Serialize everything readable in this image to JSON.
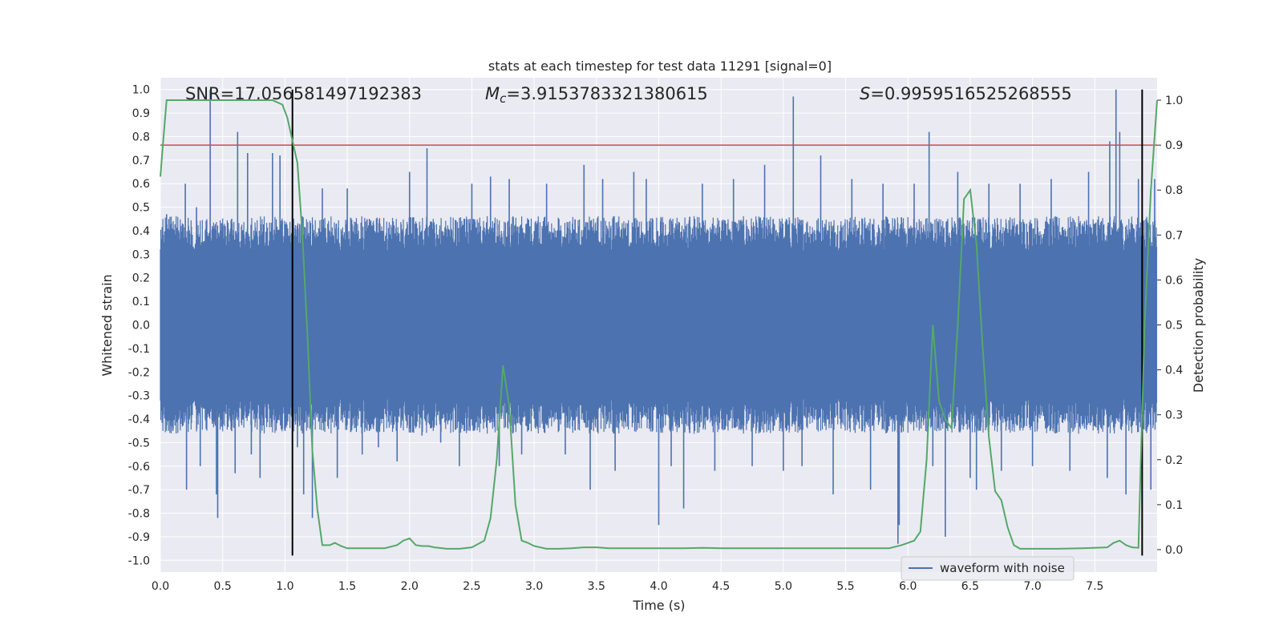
{
  "colors": {
    "plot_bg": "#eaeaf2",
    "grid": "#ffffff",
    "waveform": "#4c72b0",
    "probability": "#55a868",
    "threshold": "#c44e52",
    "marker": "#000000"
  },
  "chart_data": {
    "type": "line",
    "title": "stats at each timestep for test data 11291 [signal=0]",
    "xlabel": "Time (s)",
    "ylabel": "Whitened strain",
    "y2label": "Detection probability",
    "xlim": [
      0.0,
      8.0
    ],
    "ylim": [
      -1.05,
      1.05
    ],
    "y2lim": [
      -0.05,
      1.05
    ],
    "xticks": [
      "0.0",
      "0.5",
      "1.0",
      "1.5",
      "2.0",
      "2.5",
      "3.0",
      "3.5",
      "4.0",
      "4.5",
      "5.0",
      "5.5",
      "6.0",
      "6.5",
      "7.0",
      "7.5"
    ],
    "yticks": [
      "1.0",
      "0.9",
      "0.8",
      "0.7",
      "0.6",
      "0.5",
      "0.4",
      "0.3",
      "0.2",
      "0.1",
      "0.0",
      "-0.1",
      "-0.2",
      "-0.3",
      "-0.4",
      "-0.5",
      "-0.6",
      "-0.7",
      "-0.8",
      "-0.9",
      "-1.0"
    ],
    "y2ticks": [
      "1.0",
      "0.9",
      "0.8",
      "0.7",
      "0.6",
      "0.5",
      "0.4",
      "0.3",
      "0.2",
      "0.1",
      "0.0"
    ],
    "grid": true,
    "legend": {
      "position": "lower-right",
      "entries": [
        "waveform with noise"
      ]
    },
    "annotations": {
      "snr": "SNR=17.056581497192383",
      "mc_symbol": "M",
      "mc_sub": "c",
      "mc_value": "=3.9153783321380615",
      "s_symbol": "S",
      "s_value": "=0.9959516525268555"
    },
    "threshold_y2": 0.9,
    "vertical_markers_x": [
      1.06,
      7.88
    ],
    "waveform": {
      "name": "waveform with noise",
      "axis": "left",
      "duration_s": 8.0,
      "typical_amplitude": 0.42,
      "spikes": [
        {
          "x": 0.05,
          "y": 0.47
        },
        {
          "x": 0.1,
          "y": -0.45
        },
        {
          "x": 0.2,
          "y": 0.6
        },
        {
          "x": 0.21,
          "y": -0.7
        },
        {
          "x": 0.29,
          "y": 0.5
        },
        {
          "x": 0.32,
          "y": -0.6
        },
        {
          "x": 0.4,
          "y": 1.0
        },
        {
          "x": 0.45,
          "y": -0.72
        },
        {
          "x": 0.46,
          "y": -0.82
        },
        {
          "x": 0.52,
          "y": 0.42
        },
        {
          "x": 0.6,
          "y": -0.63
        },
        {
          "x": 0.62,
          "y": 0.82
        },
        {
          "x": 0.7,
          "y": 0.73
        },
        {
          "x": 0.73,
          "y": -0.55
        },
        {
          "x": 0.8,
          "y": -0.65
        },
        {
          "x": 0.9,
          "y": 0.73
        },
        {
          "x": 0.96,
          "y": 0.72
        },
        {
          "x": 1.0,
          "y": -0.45
        },
        {
          "x": 1.1,
          "y": -0.52
        },
        {
          "x": 1.15,
          "y": -0.72
        },
        {
          "x": 1.22,
          "y": -0.82
        },
        {
          "x": 1.3,
          "y": 0.58
        },
        {
          "x": 1.42,
          "y": -0.65
        },
        {
          "x": 1.5,
          "y": 0.58
        },
        {
          "x": 1.62,
          "y": -0.55
        },
        {
          "x": 1.75,
          "y": -0.52
        },
        {
          "x": 1.9,
          "y": -0.58
        },
        {
          "x": 2.0,
          "y": 0.65
        },
        {
          "x": 2.1,
          "y": -0.47
        },
        {
          "x": 2.14,
          "y": 0.75
        },
        {
          "x": 2.25,
          "y": -0.5
        },
        {
          "x": 2.4,
          "y": -0.6
        },
        {
          "x": 2.5,
          "y": 0.6
        },
        {
          "x": 2.65,
          "y": 0.63
        },
        {
          "x": 2.72,
          "y": -0.6
        },
        {
          "x": 2.8,
          "y": 0.62
        },
        {
          "x": 2.9,
          "y": -0.55
        },
        {
          "x": 3.1,
          "y": 0.6
        },
        {
          "x": 3.25,
          "y": -0.55
        },
        {
          "x": 3.4,
          "y": 0.68
        },
        {
          "x": 3.45,
          "y": -0.7
        },
        {
          "x": 3.55,
          "y": 0.62
        },
        {
          "x": 3.65,
          "y": -0.62
        },
        {
          "x": 3.8,
          "y": 0.65
        },
        {
          "x": 3.9,
          "y": 0.62
        },
        {
          "x": 4.0,
          "y": -0.85
        },
        {
          "x": 4.1,
          "y": -0.6
        },
        {
          "x": 4.2,
          "y": -0.78
        },
        {
          "x": 4.35,
          "y": 0.6
        },
        {
          "x": 4.45,
          "y": -0.62
        },
        {
          "x": 4.6,
          "y": 0.62
        },
        {
          "x": 4.75,
          "y": -0.6
        },
        {
          "x": 4.85,
          "y": 0.68
        },
        {
          "x": 5.0,
          "y": -0.62
        },
        {
          "x": 5.08,
          "y": 0.97
        },
        {
          "x": 5.15,
          "y": -0.6
        },
        {
          "x": 5.3,
          "y": 0.72
        },
        {
          "x": 5.4,
          "y": -0.72
        },
        {
          "x": 5.55,
          "y": 0.62
        },
        {
          "x": 5.7,
          "y": -0.7
        },
        {
          "x": 5.8,
          "y": 0.6
        },
        {
          "x": 5.92,
          "y": -0.93
        },
        {
          "x": 5.93,
          "y": -0.85
        },
        {
          "x": 6.05,
          "y": 0.6
        },
        {
          "x": 6.17,
          "y": 0.82
        },
        {
          "x": 6.2,
          "y": -0.6
        },
        {
          "x": 6.3,
          "y": -0.9
        },
        {
          "x": 6.4,
          "y": 0.65
        },
        {
          "x": 6.5,
          "y": -0.65
        },
        {
          "x": 6.55,
          "y": -0.7
        },
        {
          "x": 6.65,
          "y": 0.6
        },
        {
          "x": 6.75,
          "y": -0.62
        },
        {
          "x": 6.9,
          "y": 0.6
        },
        {
          "x": 7.0,
          "y": -0.6
        },
        {
          "x": 7.15,
          "y": 0.62
        },
        {
          "x": 7.3,
          "y": -0.62
        },
        {
          "x": 7.45,
          "y": 0.65
        },
        {
          "x": 7.6,
          "y": -0.65
        },
        {
          "x": 7.62,
          "y": 0.78
        },
        {
          "x": 7.67,
          "y": 1.0
        },
        {
          "x": 7.7,
          "y": 0.82
        },
        {
          "x": 7.75,
          "y": -0.72
        },
        {
          "x": 7.85,
          "y": 0.62
        },
        {
          "x": 7.95,
          "y": -0.7
        },
        {
          "x": 7.98,
          "y": 0.62
        }
      ]
    },
    "probability": {
      "axis": "right",
      "x": [
        0.0,
        0.02,
        0.05,
        0.1,
        0.2,
        0.3,
        0.5,
        0.7,
        0.9,
        0.98,
        1.02,
        1.06,
        1.1,
        1.14,
        1.18,
        1.22,
        1.26,
        1.3,
        1.36,
        1.4,
        1.45,
        1.5,
        1.6,
        1.7,
        1.8,
        1.9,
        1.95,
        2.0,
        2.05,
        2.1,
        2.15,
        2.2,
        2.3,
        2.4,
        2.5,
        2.6,
        2.65,
        2.7,
        2.75,
        2.8,
        2.85,
        2.9,
        2.95,
        3.0,
        3.1,
        3.2,
        3.3,
        3.4,
        3.5,
        3.6,
        3.8,
        4.0,
        4.2,
        4.35,
        4.5,
        4.7,
        4.9,
        5.1,
        5.3,
        5.5,
        5.7,
        5.85,
        5.95,
        6.0,
        6.05,
        6.1,
        6.15,
        6.2,
        6.25,
        6.3,
        6.35,
        6.4,
        6.45,
        6.5,
        6.55,
        6.6,
        6.65,
        6.7,
        6.75,
        6.8,
        6.85,
        6.9,
        7.0,
        7.2,
        7.4,
        7.6,
        7.65,
        7.7,
        7.75,
        7.8,
        7.85,
        7.9,
        7.95,
        8.0
      ],
      "y": [
        0.83,
        0.9,
        1.0,
        1.0,
        1.0,
        1.0,
        1.0,
        1.0,
        1.0,
        0.99,
        0.96,
        0.91,
        0.86,
        0.7,
        0.48,
        0.22,
        0.09,
        0.01,
        0.01,
        0.015,
        0.008,
        0.003,
        0.003,
        0.003,
        0.003,
        0.01,
        0.02,
        0.025,
        0.01,
        0.008,
        0.008,
        0.005,
        0.002,
        0.002,
        0.005,
        0.02,
        0.07,
        0.2,
        0.41,
        0.32,
        0.1,
        0.02,
        0.015,
        0.008,
        0.002,
        0.002,
        0.003,
        0.005,
        0.005,
        0.003,
        0.003,
        0.003,
        0.003,
        0.004,
        0.003,
        0.003,
        0.003,
        0.003,
        0.003,
        0.003,
        0.003,
        0.003,
        0.01,
        0.015,
        0.02,
        0.04,
        0.2,
        0.5,
        0.33,
        0.29,
        0.27,
        0.5,
        0.78,
        0.8,
        0.68,
        0.45,
        0.25,
        0.13,
        0.11,
        0.05,
        0.01,
        0.002,
        0.002,
        0.002,
        0.003,
        0.005,
        0.015,
        0.02,
        0.01,
        0.005,
        0.004,
        0.5,
        0.8,
        1.0
      ]
    }
  }
}
